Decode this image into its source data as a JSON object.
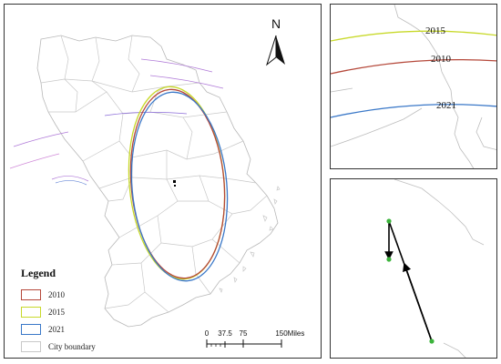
{
  "north_arrow": {
    "label": "N"
  },
  "legend": {
    "title": "Legend",
    "items": [
      {
        "label": "2010",
        "color": "#b5483a"
      },
      {
        "label": "2015",
        "color": "#c8d92a"
      },
      {
        "label": "2021",
        "color": "#3a78c8"
      },
      {
        "label": "City boundary",
        "color": "#c8c8c8"
      }
    ]
  },
  "scale_bar": {
    "ticks": [
      "0",
      "37.5",
      "75",
      "150"
    ],
    "unit": "Miles"
  },
  "inset_top": {
    "labels": [
      "2015",
      "2010",
      "2021"
    ]
  },
  "colors": {
    "boundary": "#b8b8b8",
    "ellipse_2010": "#b5483a",
    "ellipse_2015": "#c8d92a",
    "ellipse_2021": "#3a78c8",
    "trajectory": "#000000",
    "trajectory_points": "#3cb43c"
  }
}
